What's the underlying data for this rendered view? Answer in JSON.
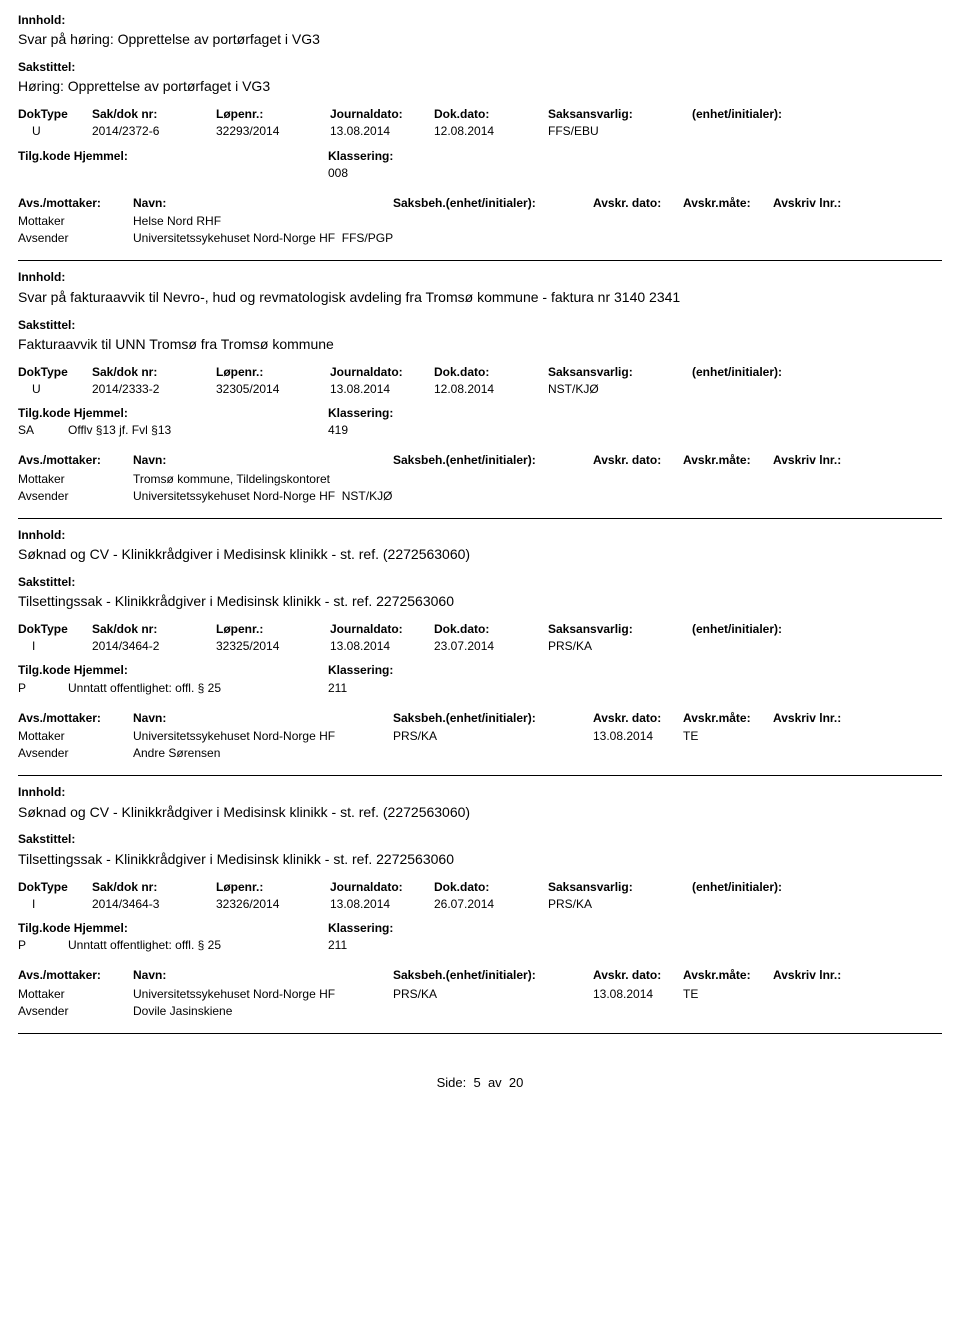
{
  "labels": {
    "innhold": "Innhold:",
    "sakstittel": "Sakstittel:",
    "doktype": "DokType",
    "sakdok": "Sak/dok nr:",
    "lopenr": "Løpenr.:",
    "journaldato": "Journaldato:",
    "dokdato": "Dok.dato:",
    "saksansvarlig": "Saksansvarlig:",
    "enhet_init": "(enhet/initialer):",
    "tilgkode": "Tilg.kode",
    "hjemmel": "Hjemmel:",
    "klassering": "Klassering:",
    "avs_mottaker": "Avs./mottaker:",
    "navn": "Navn:",
    "saksbeh": "Saksbeh.(enhet/initialer):",
    "avskr_dato": "Avskr. dato:",
    "avskr_mate": "Avskr.måte:",
    "avskriv_lnr": "Avskriv lnr.:",
    "mottaker": "Mottaker",
    "avsender": "Avsender"
  },
  "records": [
    {
      "content": "Svar på høring: Opprettelse av portørfaget i VG3",
      "case_title": "Høring: Opprettelse av portørfaget i VG3",
      "doktype": "U",
      "sakdok": "2014/2372-6",
      "lopenr": "32293/2014",
      "journaldato": "13.08.2014",
      "dokdato": "12.08.2014",
      "saksansvarlig": "FFS/EBU",
      "tilgkode": "",
      "hjemmel": "",
      "klassering": "008",
      "mottaker_name": "Helse Nord RHF",
      "mottaker_saksbeh": "",
      "mottaker_avskr_dato": "",
      "mottaker_avskr_mate": "",
      "avsender_name": "Universitetssykehuset Nord-Norge HF",
      "avsender_code": "FFS/PGP"
    },
    {
      "content": "Svar på fakturaavvik til Nevro-, hud og revmatologisk avdeling fra Tromsø kommune - faktura nr 3140 2341",
      "case_title": "Fakturaavvik til UNN Tromsø fra Tromsø kommune",
      "doktype": "U",
      "sakdok": "2014/2333-2",
      "lopenr": "32305/2014",
      "journaldato": "13.08.2014",
      "dokdato": "12.08.2014",
      "saksansvarlig": "NST/KJØ",
      "tilgkode": "SA",
      "hjemmel": "Offlv §13 jf. Fvl §13",
      "klassering": "419",
      "mottaker_name": "Tromsø kommune, Tildelingskontoret",
      "mottaker_saksbeh": "",
      "mottaker_avskr_dato": "",
      "mottaker_avskr_mate": "",
      "avsender_name": "Universitetssykehuset Nord-Norge HF",
      "avsender_code": "NST/KJØ"
    },
    {
      "content": "Søknad og CV - Klinikkrådgiver i Medisinsk klinikk - st. ref. (2272563060)",
      "case_title": "Tilsettingssak - Klinikkrådgiver i Medisinsk klinikk  - st. ref. 2272563060",
      "doktype": "I",
      "sakdok": "2014/3464-2",
      "lopenr": "32325/2014",
      "journaldato": "13.08.2014",
      "dokdato": "23.07.2014",
      "saksansvarlig": "PRS/KA",
      "tilgkode": "P",
      "hjemmel": "Unntatt offentlighet: offl. § 25",
      "klassering": "211",
      "mottaker_name": "Universitetssykehuset Nord-Norge HF",
      "mottaker_saksbeh": "PRS/KA",
      "mottaker_avskr_dato": "13.08.2014",
      "mottaker_avskr_mate": "TE",
      "avsender_name": "Andre Sørensen",
      "avsender_code": ""
    },
    {
      "content": "Søknad og CV - Klinikkrådgiver i Medisinsk klinikk - st. ref. (2272563060)",
      "case_title": "Tilsettingssak - Klinikkrådgiver i Medisinsk klinikk  - st. ref. 2272563060",
      "doktype": "I",
      "sakdok": "2014/3464-3",
      "lopenr": "32326/2014",
      "journaldato": "13.08.2014",
      "dokdato": "26.07.2014",
      "saksansvarlig": "PRS/KA",
      "tilgkode": "P",
      "hjemmel": "Unntatt offentlighet: offl. § 25",
      "klassering": "211",
      "mottaker_name": "Universitetssykehuset Nord-Norge HF",
      "mottaker_saksbeh": "PRS/KA",
      "mottaker_avskr_dato": "13.08.2014",
      "mottaker_avskr_mate": "TE",
      "avsender_name": "Dovile Jasinskiene",
      "avsender_code": ""
    }
  ],
  "footer": {
    "side": "Side:",
    "page": "5",
    "av": "av",
    "total": "20"
  }
}
